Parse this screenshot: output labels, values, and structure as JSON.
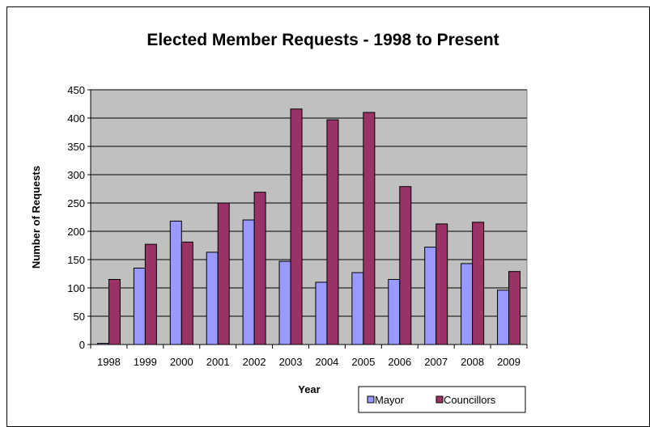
{
  "chart_data": {
    "type": "bar",
    "title": "Elected Member Requests - 1998 to Present",
    "xlabel": "Year",
    "ylabel": "Number of Requests",
    "categories": [
      "1998",
      "1999",
      "2000",
      "2001",
      "2002",
      "2003",
      "2004",
      "2005",
      "2006",
      "2007",
      "2008",
      "2009"
    ],
    "series": [
      {
        "name": "Mayor",
        "color": "#9999ff",
        "values": [
          2,
          135,
          218,
          163,
          220,
          147,
          110,
          127,
          115,
          172,
          143,
          96
        ]
      },
      {
        "name": "Councillors",
        "color": "#993366",
        "values": [
          115,
          177,
          181,
          250,
          269,
          416,
          397,
          410,
          279,
          213,
          216,
          129
        ]
      }
    ],
    "ylim": [
      0,
      450
    ],
    "yticks": [
      0,
      50,
      100,
      150,
      200,
      250,
      300,
      350,
      400,
      450
    ],
    "grid": true,
    "plot_background": "#c0c0c0",
    "legend_position": "bottom-right"
  }
}
